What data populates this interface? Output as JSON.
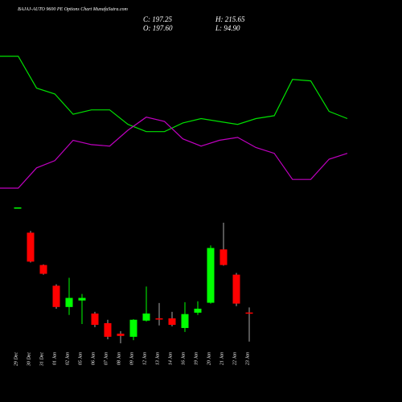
{
  "chart_data": [
    {
      "type": "line",
      "title": "BAJAJ-AUTO 9600 PE Options Chart MunafaSutra.com",
      "series": [
        {
          "name": null,
          "color": "#00e000",
          "values": [
            94,
            94,
            72,
            68,
            54,
            57,
            57,
            47,
            42,
            42,
            48,
            51,
            49,
            47,
            51,
            53,
            78,
            77,
            56,
            51
          ]
        },
        {
          "name": null,
          "color": "#c000c0",
          "values": [
            3,
            3,
            17,
            22,
            36,
            33,
            32,
            43,
            52,
            49,
            37,
            32,
            36,
            38,
            31,
            27,
            9,
            9,
            23,
            27
          ]
        }
      ]
    },
    {
      "type": "candlestick",
      "header": [
        "C: 197.25",
        "H: 215.65",
        "O: 197.60",
        "L: 94.90"
      ],
      "categories": [
        "29 Dec",
        "30 Dec",
        "31 Dec",
        "01 Jan",
        "02 Jan",
        "05 Jan",
        "06 Jan",
        "07 Jan",
        "08 Jan",
        "09 Jan",
        "12 Jan",
        "13 Jan",
        "14 Jan",
        "16 Jan",
        "19 Jan",
        "20 Jan",
        "21 Jan",
        "22 Jan",
        "23 Jan"
      ],
      "up_color": "#00ff00",
      "down_color": "#ff0000",
      "open": [
        566,
        479,
        365,
        292,
        217,
        240,
        194,
        160,
        123,
        112,
        169,
        177,
        177,
        143,
        197,
        232,
        420,
        331,
        197.6
      ],
      "high": [
        568,
        485,
        367,
        297,
        320,
        263,
        200,
        172,
        132,
        174,
        289,
        231,
        200,
        234,
        237,
        434,
        514,
        337,
        215.65
      ],
      "low": [
        566,
        374,
        331,
        211,
        189,
        157,
        146,
        103,
        89,
        100,
        166,
        152,
        149,
        129,
        189,
        229,
        363,
        220,
        94.9
      ],
      "close": [
        568,
        377,
        334,
        217,
        249,
        249,
        154,
        112,
        115,
        172,
        194,
        174,
        154,
        192,
        211,
        425,
        365,
        229,
        197.25
      ]
    }
  ]
}
